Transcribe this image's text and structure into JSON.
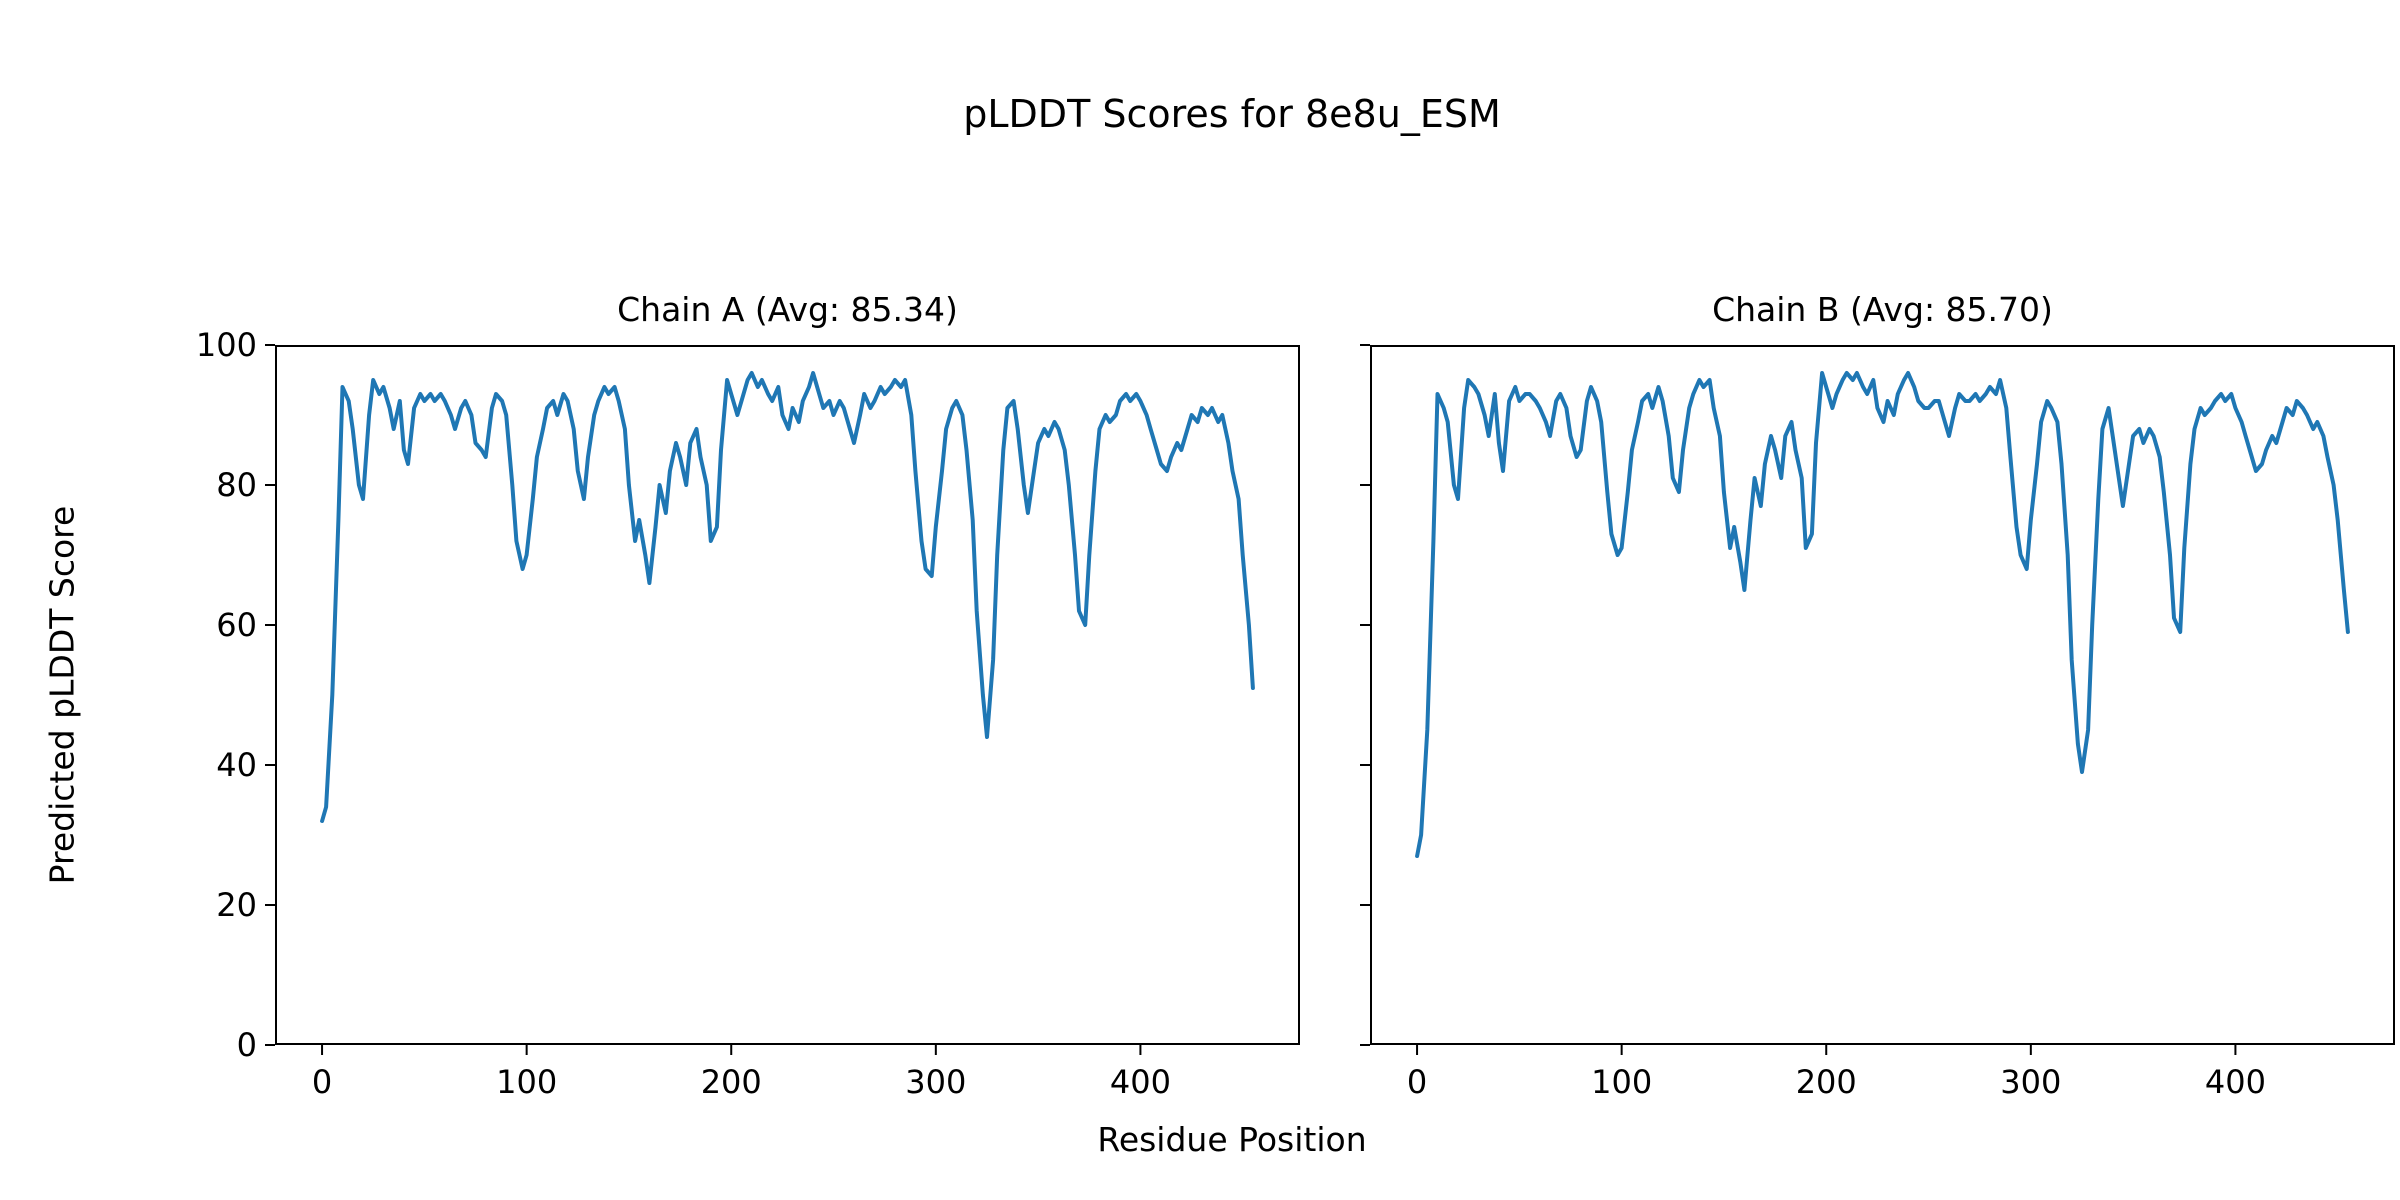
{
  "figure": {
    "title": "pLDDT Scores for 8e8u_ESM",
    "xlabel": "Residue Position",
    "ylabel": "Predicted pLDDT Score"
  },
  "chart_data": {
    "type": "line",
    "line_color": "#1f77b4",
    "grid": false,
    "legend": "none",
    "plots": [
      {
        "title": "Chain A (Avg: 85.34)",
        "chain": "A",
        "avg": 85.34,
        "xlim": [
          -23,
          478
        ],
        "ylim": [
          0,
          100
        ],
        "xticks": [
          0,
          100,
          200,
          300,
          400
        ],
        "yticks": [
          0,
          20,
          40,
          60,
          80,
          100
        ],
        "y_tick_labels_visible": true,
        "x": [
          0,
          2,
          5,
          8,
          10,
          13,
          15,
          18,
          20,
          23,
          25,
          28,
          30,
          33,
          35,
          38,
          40,
          42,
          45,
          48,
          50,
          53,
          55,
          58,
          60,
          63,
          65,
          68,
          70,
          73,
          75,
          78,
          80,
          83,
          85,
          88,
          90,
          93,
          95,
          98,
          100,
          103,
          105,
          108,
          110,
          113,
          115,
          118,
          120,
          123,
          125,
          128,
          130,
          133,
          135,
          138,
          140,
          143,
          145,
          148,
          150,
          153,
          155,
          158,
          160,
          163,
          165,
          168,
          170,
          173,
          175,
          178,
          180,
          183,
          185,
          188,
          190,
          193,
          195,
          198,
          200,
          203,
          205,
          208,
          210,
          213,
          215,
          218,
          220,
          223,
          225,
          228,
          230,
          233,
          235,
          238,
          240,
          243,
          245,
          248,
          250,
          253,
          255,
          258,
          260,
          263,
          265,
          268,
          270,
          273,
          275,
          278,
          280,
          283,
          285,
          288,
          290,
          293,
          295,
          298,
          300,
          303,
          305,
          308,
          310,
          313,
          315,
          318,
          320,
          323,
          325,
          328,
          330,
          333,
          335,
          338,
          340,
          343,
          345,
          348,
          350,
          353,
          355,
          358,
          360,
          363,
          365,
          368,
          370,
          373,
          375,
          378,
          380,
          383,
          385,
          388,
          390,
          393,
          395,
          398,
          400,
          403,
          405,
          408,
          410,
          413,
          415,
          418,
          420,
          423,
          425,
          428,
          430,
          433,
          435,
          438,
          440,
          443,
          445,
          448,
          450,
          453,
          455
        ],
        "y": [
          32,
          34,
          50,
          75,
          94,
          92,
          88,
          80,
          78,
          90,
          95,
          93,
          94,
          91,
          88,
          92,
          85,
          83,
          91,
          93,
          92,
          93,
          92,
          93,
          92,
          90,
          88,
          91,
          92,
          90,
          86,
          85,
          84,
          91,
          93,
          92,
          90,
          80,
          72,
          68,
          70,
          78,
          84,
          88,
          91,
          92,
          90,
          93,
          92,
          88,
          82,
          78,
          84,
          90,
          92,
          94,
          93,
          94,
          92,
          88,
          80,
          72,
          75,
          70,
          66,
          74,
          80,
          76,
          82,
          86,
          84,
          80,
          86,
          88,
          84,
          80,
          72,
          74,
          85,
          95,
          93,
          90,
          92,
          95,
          96,
          94,
          95,
          93,
          92,
          94,
          90,
          88,
          91,
          89,
          92,
          94,
          96,
          93,
          91,
          92,
          90,
          92,
          91,
          88,
          86,
          90,
          93,
          91,
          92,
          94,
          93,
          94,
          95,
          94,
          95,
          90,
          82,
          72,
          68,
          67,
          74,
          82,
          88,
          91,
          92,
          90,
          85,
          75,
          62,
          50,
          44,
          55,
          70,
          85,
          91,
          92,
          88,
          80,
          76,
          82,
          86,
          88,
          87,
          89,
          88,
          85,
          80,
          70,
          62,
          60,
          70,
          82,
          88,
          90,
          89,
          90,
          92,
          93,
          92,
          93,
          92,
          90,
          88,
          85,
          83,
          82,
          84,
          86,
          85,
          88,
          90,
          89,
          91,
          90,
          91,
          89,
          90,
          86,
          82,
          78,
          70,
          60,
          51
        ]
      },
      {
        "title": "Chain B (Avg: 85.70)",
        "chain": "B",
        "avg": 85.7,
        "xlim": [
          -23,
          478
        ],
        "ylim": [
          0,
          100
        ],
        "xticks": [
          0,
          100,
          200,
          300,
          400
        ],
        "yticks": [
          0,
          20,
          40,
          60,
          80,
          100
        ],
        "y_tick_labels_visible": false,
        "x": [
          0,
          2,
          5,
          8,
          10,
          13,
          15,
          18,
          20,
          23,
          25,
          28,
          30,
          33,
          35,
          38,
          40,
          42,
          45,
          48,
          50,
          53,
          55,
          58,
          60,
          63,
          65,
          68,
          70,
          73,
          75,
          78,
          80,
          83,
          85,
          88,
          90,
          93,
          95,
          98,
          100,
          103,
          105,
          108,
          110,
          113,
          115,
          118,
          120,
          123,
          125,
          128,
          130,
          133,
          135,
          138,
          140,
          143,
          145,
          148,
          150,
          153,
          155,
          158,
          160,
          163,
          165,
          168,
          170,
          173,
          175,
          178,
          180,
          183,
          185,
          188,
          190,
          193,
          195,
          198,
          200,
          203,
          205,
          208,
          210,
          213,
          215,
          218,
          220,
          223,
          225,
          228,
          230,
          233,
          235,
          238,
          240,
          243,
          245,
          248,
          250,
          253,
          255,
          258,
          260,
          263,
          265,
          268,
          270,
          273,
          275,
          278,
          280,
          283,
          285,
          288,
          290,
          293,
          295,
          298,
          300,
          303,
          305,
          308,
          310,
          313,
          315,
          318,
          320,
          323,
          325,
          328,
          330,
          333,
          335,
          338,
          340,
          343,
          345,
          348,
          350,
          353,
          355,
          358,
          360,
          363,
          365,
          368,
          370,
          373,
          375,
          378,
          380,
          383,
          385,
          388,
          390,
          393,
          395,
          398,
          400,
          403,
          405,
          408,
          410,
          413,
          415,
          418,
          420,
          423,
          425,
          428,
          430,
          433,
          435,
          438,
          440,
          443,
          445,
          448,
          450,
          453,
          455
        ],
        "y": [
          27,
          30,
          45,
          72,
          93,
          91,
          89,
          80,
          78,
          91,
          95,
          94,
          93,
          90,
          87,
          93,
          86,
          82,
          92,
          94,
          92,
          93,
          93,
          92,
          91,
          89,
          87,
          92,
          93,
          91,
          87,
          84,
          85,
          92,
          94,
          92,
          89,
          79,
          73,
          70,
          71,
          79,
          85,
          89,
          92,
          93,
          91,
          94,
          92,
          87,
          81,
          79,
          85,
          91,
          93,
          95,
          94,
          95,
          91,
          87,
          79,
          71,
          74,
          69,
          65,
          75,
          81,
          77,
          83,
          87,
          85,
          81,
          87,
          89,
          85,
          81,
          71,
          73,
          86,
          96,
          94,
          91,
          93,
          95,
          96,
          95,
          96,
          94,
          93,
          95,
          91,
          89,
          92,
          90,
          93,
          95,
          96,
          94,
          92,
          91,
          91,
          92,
          92,
          89,
          87,
          91,
          93,
          92,
          92,
          93,
          92,
          93,
          94,
          93,
          95,
          91,
          84,
          74,
          70,
          68,
          75,
          83,
          89,
          92,
          91,
          89,
          83,
          70,
          55,
          43,
          39,
          45,
          60,
          78,
          88,
          91,
          87,
          81,
          77,
          83,
          87,
          88,
          86,
          88,
          87,
          84,
          79,
          70,
          61,
          59,
          71,
          83,
          88,
          91,
          90,
          91,
          92,
          93,
          92,
          93,
          91,
          89,
          87,
          84,
          82,
          83,
          85,
          87,
          86,
          89,
          91,
          90,
          92,
          91,
          90,
          88,
          89,
          87,
          84,
          80,
          75,
          65,
          59
        ]
      }
    ]
  }
}
